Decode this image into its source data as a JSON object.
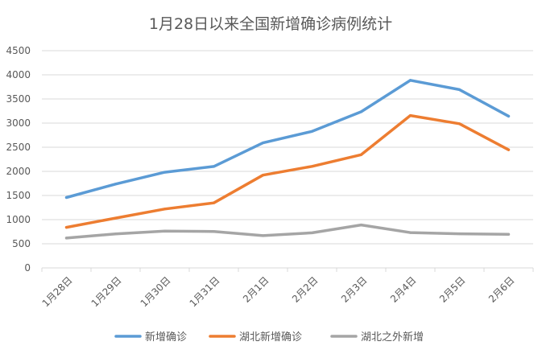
{
  "chart_data": {
    "type": "line",
    "title": "1月28日以来全国新增确诊病例统计",
    "xlabel": "",
    "ylabel": "",
    "categories": [
      "1月28日",
      "1月29日",
      "1月30日",
      "1月31日",
      "2月1日",
      "2月2日",
      "2月3日",
      "2月4日",
      "2月5日",
      "2月6日"
    ],
    "ylim": [
      0,
      4500
    ],
    "yticks": [
      0,
      500,
      1000,
      1500,
      2000,
      2500,
      3000,
      3500,
      4000,
      4500
    ],
    "grid": true,
    "legend_position": "bottom",
    "series": [
      {
        "name": "新增确诊",
        "color": "#5B9BD5",
        "values": [
          1459,
          1737,
          1982,
          2102,
          2590,
          2829,
          3235,
          3887,
          3694,
          3143
        ]
      },
      {
        "name": "湖北新增确诊",
        "color": "#ED7D31",
        "values": [
          840,
          1032,
          1220,
          1347,
          1921,
          2103,
          2345,
          3156,
          2987,
          2447
        ]
      },
      {
        "name": "湖北之外新增",
        "color": "#A5A5A5",
        "values": [
          619,
          705,
          762,
          755,
          669,
          726,
          890,
          731,
          707,
          696
        ]
      }
    ]
  }
}
